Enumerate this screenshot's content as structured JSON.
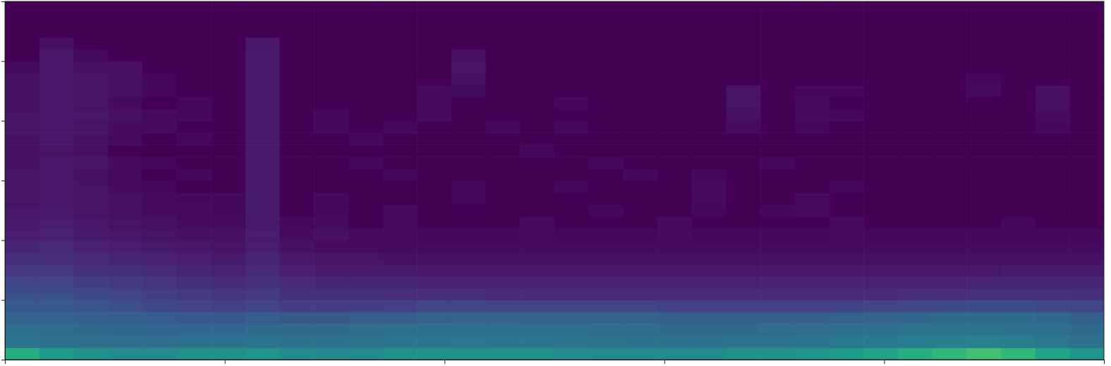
{
  "chart_data": {
    "type": "heatmap",
    "color": "viridis",
    "tick_labels": false,
    "xlim": [
      0,
      5
    ],
    "xticks": [
      0,
      1,
      2,
      3,
      4,
      5
    ],
    "ylim": [
      0,
      6
    ],
    "yticks": [
      0,
      1,
      2,
      3,
      4,
      5,
      6
    ],
    "zlim": [
      0,
      1
    ],
    "z": [
      [
        0.62,
        0.55,
        0.5,
        0.48,
        0.48,
        0.5,
        0.5,
        0.52,
        0.48,
        0.47,
        0.48,
        0.5,
        0.5,
        0.5,
        0.5,
        0.5,
        0.49,
        0.48,
        0.48,
        0.48,
        0.48,
        0.5,
        0.5,
        0.52,
        0.55,
        0.58,
        0.62,
        0.66,
        0.7,
        0.66,
        0.58,
        0.52
      ],
      [
        0.38,
        0.37,
        0.36,
        0.36,
        0.36,
        0.37,
        0.37,
        0.38,
        0.37,
        0.37,
        0.38,
        0.39,
        0.39,
        0.4,
        0.39,
        0.39,
        0.38,
        0.38,
        0.37,
        0.37,
        0.37,
        0.38,
        0.38,
        0.39,
        0.4,
        0.41,
        0.42,
        0.43,
        0.44,
        0.42,
        0.4,
        0.37
      ],
      [
        0.36,
        0.35,
        0.34,
        0.33,
        0.33,
        0.33,
        0.33,
        0.34,
        0.34,
        0.34,
        0.35,
        0.36,
        0.36,
        0.37,
        0.37,
        0.36,
        0.36,
        0.35,
        0.35,
        0.34,
        0.34,
        0.34,
        0.35,
        0.35,
        0.36,
        0.37,
        0.38,
        0.38,
        0.38,
        0.37,
        0.36,
        0.34
      ],
      [
        0.32,
        0.32,
        0.3,
        0.3,
        0.29,
        0.28,
        0.28,
        0.29,
        0.28,
        0.28,
        0.29,
        0.3,
        0.31,
        0.32,
        0.32,
        0.32,
        0.32,
        0.31,
        0.31,
        0.3,
        0.3,
        0.3,
        0.3,
        0.3,
        0.31,
        0.32,
        0.33,
        0.34,
        0.34,
        0.34,
        0.33,
        0.3
      ],
      [
        0.28,
        0.28,
        0.26,
        0.24,
        0.22,
        0.2,
        0.19,
        0.2,
        0.18,
        0.18,
        0.18,
        0.19,
        0.2,
        0.2,
        0.2,
        0.2,
        0.2,
        0.2,
        0.2,
        0.19,
        0.19,
        0.19,
        0.19,
        0.19,
        0.19,
        0.2,
        0.21,
        0.22,
        0.23,
        0.23,
        0.22,
        0.2
      ],
      [
        0.24,
        0.24,
        0.22,
        0.2,
        0.18,
        0.17,
        0.15,
        0.17,
        0.14,
        0.13,
        0.13,
        0.13,
        0.13,
        0.13,
        0.12,
        0.12,
        0.12,
        0.12,
        0.12,
        0.12,
        0.12,
        0.12,
        0.12,
        0.12,
        0.12,
        0.12,
        0.13,
        0.13,
        0.14,
        0.14,
        0.14,
        0.13
      ],
      [
        0.2,
        0.2,
        0.18,
        0.17,
        0.15,
        0.13,
        0.12,
        0.14,
        0.11,
        0.1,
        0.1,
        0.1,
        0.09,
        0.09,
        0.09,
        0.09,
        0.09,
        0.09,
        0.09,
        0.09,
        0.09,
        0.09,
        0.09,
        0.09,
        0.09,
        0.09,
        0.09,
        0.09,
        0.1,
        0.1,
        0.1,
        0.1
      ],
      [
        0.16,
        0.16,
        0.14,
        0.13,
        0.12,
        0.1,
        0.09,
        0.12,
        0.08,
        0.07,
        0.07,
        0.07,
        0.06,
        0.06,
        0.06,
        0.06,
        0.06,
        0.06,
        0.06,
        0.06,
        0.06,
        0.06,
        0.06,
        0.06,
        0.06,
        0.06,
        0.06,
        0.06,
        0.06,
        0.07,
        0.07,
        0.07
      ],
      [
        0.13,
        0.13,
        0.11,
        0.1,
        0.09,
        0.08,
        0.07,
        0.1,
        0.06,
        0.05,
        0.05,
        0.04,
        0.04,
        0.04,
        0.04,
        0.04,
        0.04,
        0.04,
        0.04,
        0.04,
        0.04,
        0.04,
        0.04,
        0.04,
        0.04,
        0.04,
        0.04,
        0.04,
        0.04,
        0.04,
        0.04,
        0.04
      ],
      [
        0.1,
        0.11,
        0.09,
        0.08,
        0.07,
        0.06,
        0.05,
        0.08,
        0.04,
        0.03,
        0.03,
        0.03,
        0.03,
        0.03,
        0.03,
        0.03,
        0.03,
        0.03,
        0.03,
        0.03,
        0.03,
        0.03,
        0.03,
        0.03,
        0.03,
        0.03,
        0.03,
        0.03,
        0.03,
        0.03,
        0.03,
        0.03
      ],
      [
        0.08,
        0.09,
        0.07,
        0.06,
        0.05,
        0.04,
        0.04,
        0.08,
        0.03,
        0.04,
        0.03,
        0.03,
        0.02,
        0.02,
        0.02,
        0.03,
        0.02,
        0.02,
        0.02,
        0.03,
        0.02,
        0.02,
        0.02,
        0.02,
        0.03,
        0.02,
        0.02,
        0.02,
        0.02,
        0.02,
        0.02,
        0.02
      ],
      [
        0.07,
        0.08,
        0.06,
        0.05,
        0.04,
        0.03,
        0.03,
        0.07,
        0.02,
        0.03,
        0,
        0.03,
        0,
        0,
        0,
        0.03,
        0,
        0,
        0,
        0.03,
        0,
        0,
        0,
        0,
        0.03,
        0,
        0,
        0,
        0,
        0.02,
        0,
        0
      ],
      [
        0.06,
        0.07,
        0.05,
        0.04,
        0.03,
        0.03,
        0.02,
        0.07,
        0,
        0.02,
        0,
        0.03,
        0,
        0,
        0,
        0,
        0,
        0.02,
        0,
        0,
        0.02,
        0,
        0.02,
        0.03,
        0,
        0,
        0,
        0,
        0,
        0,
        0,
        0
      ],
      [
        0.05,
        0.06,
        0.05,
        0.04,
        0.03,
        0.02,
        0.02,
        0.07,
        0,
        0.02,
        0,
        0,
        0,
        0.02,
        0,
        0,
        0,
        0,
        0,
        0,
        0.03,
        0,
        0,
        0.03,
        0,
        0,
        0,
        0,
        0,
        0,
        0,
        0
      ],
      [
        0.05,
        0.06,
        0.05,
        0.03,
        0.02,
        0,
        0,
        0.07,
        0,
        0,
        0,
        0,
        0,
        0.02,
        0,
        0,
        0.02,
        0,
        0,
        0,
        0.03,
        0,
        0,
        0,
        0.02,
        0,
        0,
        0,
        0,
        0,
        0,
        0
      ],
      [
        0.05,
        0.06,
        0.04,
        0.03,
        0,
        0.02,
        0,
        0.07,
        0,
        0,
        0,
        0.02,
        0,
        0,
        0,
        0,
        0,
        0,
        0.02,
        0,
        0.02,
        0,
        0,
        0,
        0,
        0,
        0,
        0,
        0,
        0,
        0,
        0
      ],
      [
        0.04,
        0.06,
        0.05,
        0.03,
        0.02,
        0,
        0,
        0.07,
        0,
        0,
        0.02,
        0,
        0,
        0,
        0,
        0,
        0,
        0.02,
        0,
        0,
        0,
        0,
        0.02,
        0,
        0,
        0,
        0,
        0,
        0,
        0,
        0,
        0
      ],
      [
        0.04,
        0.05,
        0.04,
        0,
        0,
        0,
        0,
        0.07,
        0,
        0,
        0,
        0,
        0,
        0,
        0,
        0.02,
        0,
        0,
        0,
        0,
        0,
        0,
        0,
        0,
        0,
        0,
        0,
        0,
        0,
        0,
        0,
        0
      ],
      [
        0.04,
        0.06,
        0.04,
        0.03,
        0,
        0.02,
        0,
        0.07,
        0,
        0,
        0.02,
        0,
        0,
        0,
        0,
        0,
        0,
        0,
        0,
        0,
        0,
        0,
        0,
        0,
        0,
        0,
        0,
        0,
        0,
        0,
        0,
        0
      ],
      [
        0.05,
        0.06,
        0.05,
        0.03,
        0.03,
        0,
        0,
        0.07,
        0,
        0.02,
        0,
        0.02,
        0,
        0,
        0.02,
        0,
        0.02,
        0,
        0,
        0,
        0,
        0.03,
        0,
        0.02,
        0,
        0,
        0,
        0,
        0,
        0,
        0.02,
        0
      ],
      [
        0.05,
        0.06,
        0.06,
        0.04,
        0.03,
        0.02,
        0,
        0.07,
        0,
        0.02,
        0,
        0,
        0.03,
        0,
        0,
        0,
        0,
        0,
        0,
        0,
        0,
        0.04,
        0,
        0.03,
        0.02,
        0,
        0,
        0,
        0,
        0,
        0.03,
        0
      ],
      [
        0.04,
        0.06,
        0.05,
        0.03,
        0,
        0.02,
        0,
        0.07,
        0,
        0,
        0,
        0,
        0.03,
        0,
        0,
        0,
        0.02,
        0,
        0,
        0,
        0,
        0.05,
        0,
        0.03,
        0,
        0,
        0,
        0,
        0,
        0,
        0.04,
        0
      ],
      [
        0.04,
        0.06,
        0.05,
        0.04,
        0.02,
        0,
        0,
        0.07,
        0,
        0,
        0,
        0,
        0.03,
        0.03,
        0,
        0,
        0,
        0,
        0,
        0,
        0,
        0.05,
        0,
        0.02,
        0.02,
        0,
        0,
        0,
        0.03,
        0,
        0.04,
        0
      ],
      [
        0.04,
        0.06,
        0.05,
        0.04,
        0.02,
        0,
        0,
        0.07,
        0,
        0,
        0,
        0,
        0,
        0.04,
        0,
        0,
        0,
        0,
        0,
        0,
        0,
        0,
        0,
        0,
        0,
        0,
        0,
        0,
        0.02,
        0,
        0,
        0
      ],
      [
        0.03,
        0.06,
        0.04,
        0.04,
        0,
        0,
        0,
        0.07,
        0,
        0,
        0,
        0,
        0,
        0.05,
        0,
        0,
        0,
        0,
        0,
        0,
        0,
        0,
        0,
        0,
        0,
        0,
        0,
        0,
        0,
        0,
        0,
        0
      ],
      [
        0,
        0.06,
        0.03,
        0,
        0,
        0,
        0,
        0.07,
        0,
        0,
        0,
        0,
        0,
        0.04,
        0,
        0,
        0,
        0,
        0,
        0,
        0,
        0,
        0,
        0,
        0,
        0,
        0,
        0,
        0,
        0,
        0,
        0
      ],
      [
        0,
        0.04,
        0,
        0,
        0,
        0,
        0,
        0.06,
        0,
        0,
        0,
        0,
        0,
        0,
        0,
        0,
        0,
        0,
        0,
        0,
        0,
        0,
        0,
        0,
        0,
        0,
        0,
        0,
        0,
        0,
        0,
        0
      ],
      [
        0,
        0,
        0,
        0,
        0,
        0,
        0,
        0,
        0,
        0,
        0,
        0,
        0,
        0,
        0,
        0,
        0,
        0,
        0,
        0,
        0,
        0,
        0,
        0,
        0,
        0,
        0,
        0,
        0,
        0,
        0,
        0
      ],
      [
        0,
        0,
        0,
        0,
        0,
        0,
        0,
        0,
        0,
        0,
        0,
        0,
        0,
        0,
        0,
        0,
        0,
        0,
        0,
        0,
        0,
        0,
        0,
        0,
        0,
        0,
        0,
        0,
        0,
        0,
        0,
        0
      ],
      [
        0,
        0,
        0,
        0,
        0,
        0,
        0,
        0,
        0,
        0,
        0,
        0,
        0,
        0,
        0,
        0,
        0,
        0,
        0,
        0,
        0,
        0,
        0,
        0,
        0,
        0,
        0,
        0,
        0,
        0,
        0,
        0
      ]
    ]
  }
}
